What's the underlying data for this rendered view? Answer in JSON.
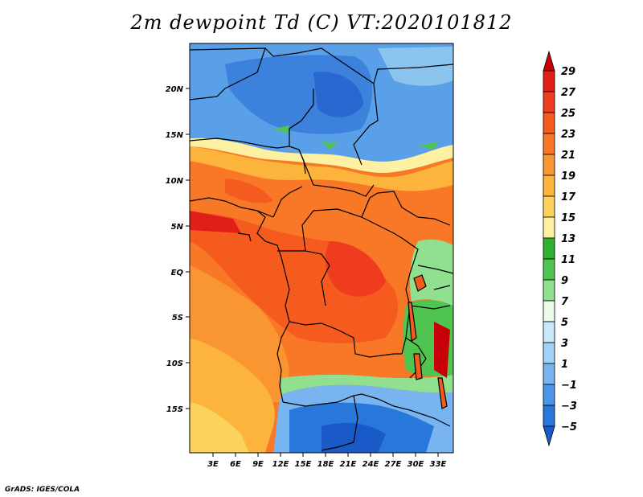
{
  "title": "2m dewpoint Td (C) VT:2020101812",
  "credit": "GrADS: IGES/COLA",
  "lat_labels": [
    "20N",
    "15N",
    "10N",
    "5N",
    "EQ",
    "5S",
    "10S",
    "15S"
  ],
  "lon_labels": [
    "3E",
    "6E",
    "9E",
    "12E",
    "15E",
    "18E",
    "21E",
    "24E",
    "27E",
    "30E",
    "33E"
  ],
  "colorbar": {
    "labels": [
      "29",
      "27",
      "25",
      "23",
      "21",
      "19",
      "17",
      "15",
      "13",
      "11",
      "9",
      "7",
      "5",
      "3",
      "1",
      "-1",
      "-3",
      "-5"
    ],
    "colors": [
      "#c8000a",
      "#e02018",
      "#f03c1e",
      "#f55a1e",
      "#f87828",
      "#fa9632",
      "#fcb43c",
      "#fdd25a",
      "#fdf0a0",
      "#30b030",
      "#50c450",
      "#90e090",
      "#e8fce8",
      "#c8e8fa",
      "#a0d2f5",
      "#78b4f0",
      "#4a96e8",
      "#2878dc",
      "#1a5ac8"
    ]
  }
}
